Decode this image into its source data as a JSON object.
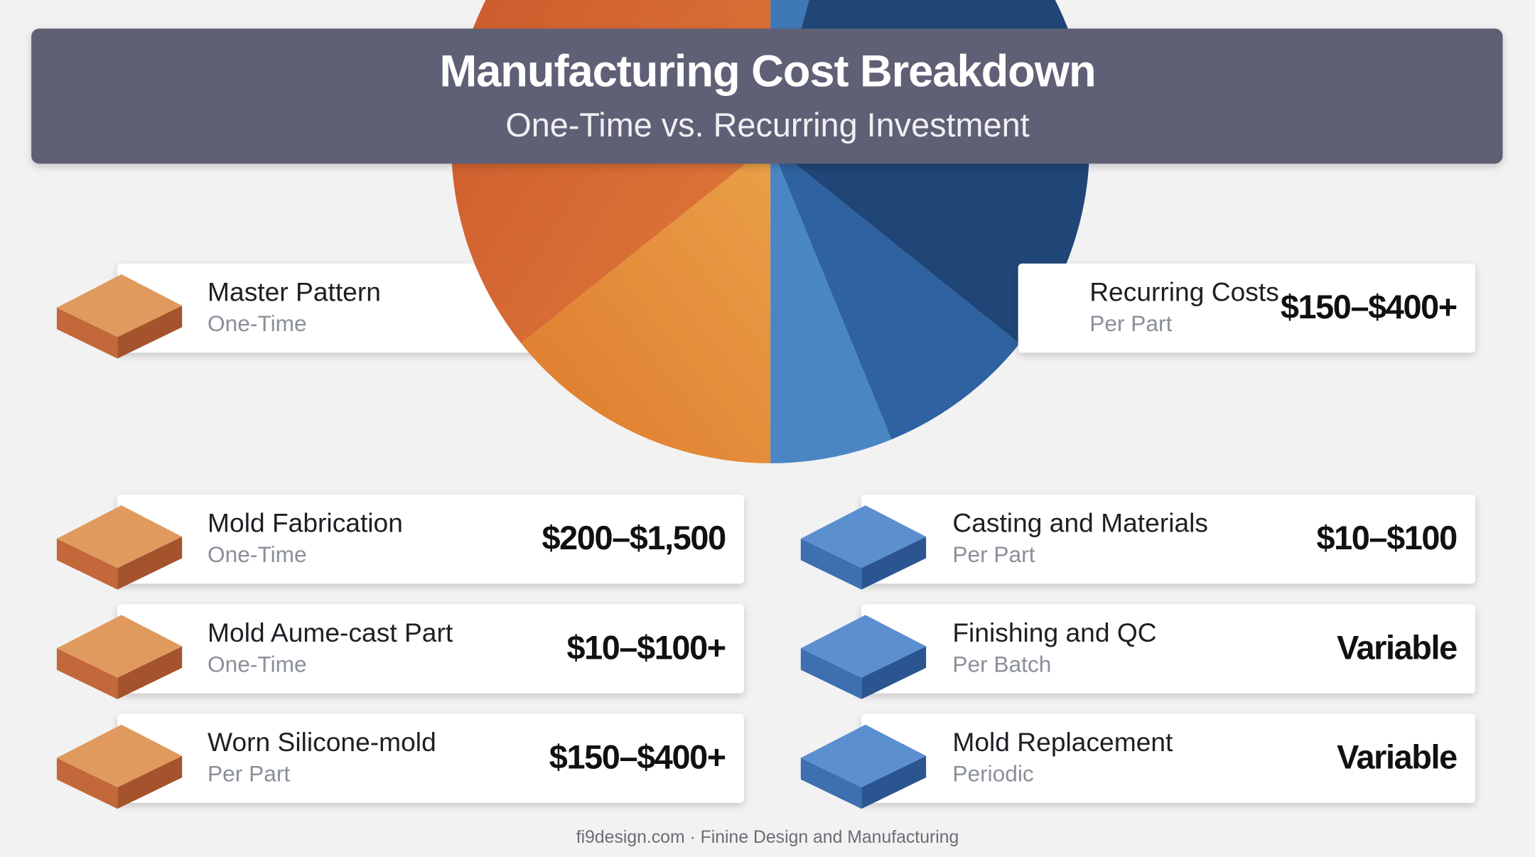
{
  "header": {
    "title": "Manufacturing Cost Breakdown",
    "subtitle": "One-Time vs. Recurring Investment"
  },
  "cards": [
    {
      "title": "Master Pattern",
      "period": "One-Time"
    },
    {
      "title": "Recurring Costs",
      "period": "Per Part",
      "cost": "$150–$400+"
    },
    {
      "title": "Mold Fabrication",
      "period": "One-Time",
      "cost": "$200–$1,500"
    },
    {
      "title": "Casting and Materials",
      "period": "Per Part",
      "cost": "$10–$100"
    },
    {
      "title": "Mold Aume-cast Part",
      "period": "One-Time",
      "cost": "$10–$100+"
    },
    {
      "title": "Finishing and QC",
      "period": "Per Batch",
      "cost": "Variable"
    },
    {
      "title": "Worn Silicone-mold",
      "period": "Per Part",
      "cost": "$150–$400+"
    },
    {
      "title": "Mold Replacement",
      "period": "Periodic",
      "cost": "Variable"
    }
  ],
  "footer": "fi9design.com · Finine Design and Manufacturing"
}
